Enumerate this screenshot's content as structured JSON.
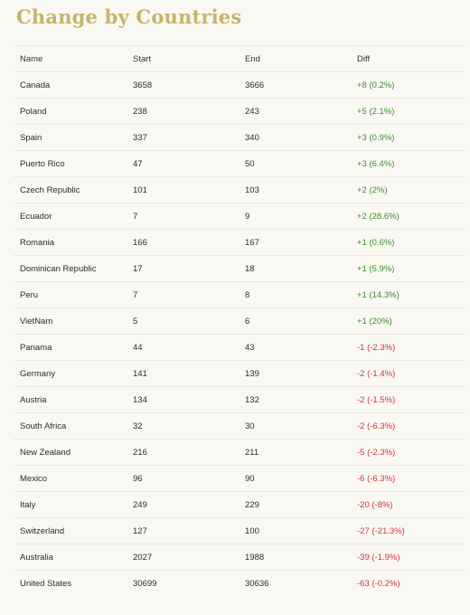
{
  "title": "Change by Countries",
  "columns": {
    "name": "Name",
    "start": "Start",
    "end": "End",
    "diff": "Diff"
  },
  "colors": {
    "title": "#c7b46a",
    "positive": "#3d8c2f",
    "negative": "#d0343a"
  },
  "rows": [
    {
      "name": "Canada",
      "start": "3658",
      "end": "3666",
      "diff": "+8 (0.2%)",
      "trend": "pos"
    },
    {
      "name": "Poland",
      "start": "238",
      "end": "243",
      "diff": "+5 (2.1%)",
      "trend": "pos"
    },
    {
      "name": "Spain",
      "start": "337",
      "end": "340",
      "diff": "+3 (0.9%)",
      "trend": "pos"
    },
    {
      "name": "Puerto Rico",
      "start": "47",
      "end": "50",
      "diff": "+3 (6.4%)",
      "trend": "pos"
    },
    {
      "name": "Czech Republic",
      "start": "101",
      "end": "103",
      "diff": "+2 (2%)",
      "trend": "pos"
    },
    {
      "name": "Ecuador",
      "start": "7",
      "end": "9",
      "diff": "+2 (28.6%)",
      "trend": "pos"
    },
    {
      "name": "Romania",
      "start": "166",
      "end": "167",
      "diff": "+1 (0.6%)",
      "trend": "pos"
    },
    {
      "name": "Dominican Republic",
      "start": "17",
      "end": "18",
      "diff": "+1 (5.9%)",
      "trend": "pos"
    },
    {
      "name": "Peru",
      "start": "7",
      "end": "8",
      "diff": "+1 (14.3%)",
      "trend": "pos"
    },
    {
      "name": "VietNam",
      "start": "5",
      "end": "6",
      "diff": "+1 (20%)",
      "trend": "pos"
    },
    {
      "name": "Panama",
      "start": "44",
      "end": "43",
      "diff": "-1 (-2.3%)",
      "trend": "neg"
    },
    {
      "name": "Germany",
      "start": "141",
      "end": "139",
      "diff": "-2 (-1.4%)",
      "trend": "neg"
    },
    {
      "name": "Austria",
      "start": "134",
      "end": "132",
      "diff": "-2 (-1.5%)",
      "trend": "neg"
    },
    {
      "name": "South Africa",
      "start": "32",
      "end": "30",
      "diff": "-2 (-6.3%)",
      "trend": "neg"
    },
    {
      "name": "New Zealand",
      "start": "216",
      "end": "211",
      "diff": "-5 (-2.3%)",
      "trend": "neg"
    },
    {
      "name": "Mexico",
      "start": "96",
      "end": "90",
      "diff": "-6 (-6.3%)",
      "trend": "neg"
    },
    {
      "name": "Italy",
      "start": "249",
      "end": "229",
      "diff": "-20 (-8%)",
      "trend": "neg"
    },
    {
      "name": "Switzerland",
      "start": "127",
      "end": "100",
      "diff": "-27 (-21.3%)",
      "trend": "neg"
    },
    {
      "name": "Australia",
      "start": "2027",
      "end": "1988",
      "diff": "-39 (-1.9%)",
      "trend": "neg"
    },
    {
      "name": "United States",
      "start": "30699",
      "end": "30636",
      "diff": "-63 (-0.2%)",
      "trend": "neg"
    }
  ]
}
